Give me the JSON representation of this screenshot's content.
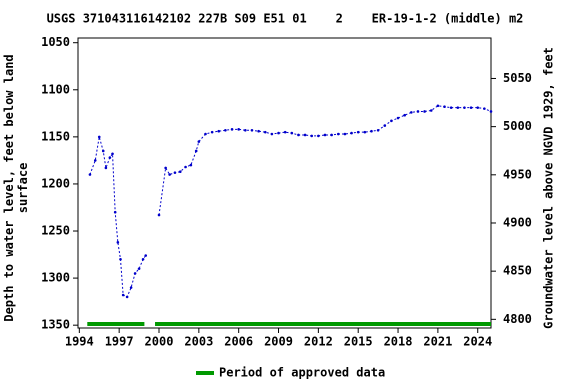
{
  "chart_data": {
    "type": "line",
    "title": "USGS 371043116142102 227B S09 E51 01    2    ER-19-1-2 (middle) m2",
    "y_label": "Depth to water level, feet below land\nsurface",
    "y2_label": "Groundwater level above NGVD 1929, feet",
    "x": [
      1994.8,
      1995.2,
      1995.5,
      1995.8,
      1996.0,
      1996.3,
      1996.5,
      1996.7,
      1996.9,
      1997.1,
      1997.3,
      1997.6,
      1997.9,
      1998.2,
      1998.5,
      1998.8,
      1999.0,
      1999.4,
      2000.0,
      2000.5,
      2000.8,
      2001.2,
      2001.6,
      2002.0,
      2002.4,
      2002.8,
      2003.0,
      2003.5,
      2004.0,
      2004.5,
      2005.0,
      2005.5,
      2006.0,
      2006.5,
      2007.0,
      2007.5,
      2008.0,
      2008.5,
      2009.0,
      2009.5,
      2010.0,
      2010.5,
      2011.0,
      2011.5,
      2012.0,
      2012.5,
      2013.0,
      2013.5,
      2014.0,
      2014.5,
      2015.0,
      2015.5,
      2016.0,
      2016.5,
      2017.0,
      2017.5,
      2018.0,
      2018.5,
      2019.0,
      2019.5,
      2020.0,
      2020.5,
      2021.0,
      2021.5,
      2022.0,
      2022.5,
      2023.0,
      2023.5,
      2024.0,
      2024.5,
      2025.0
    ],
    "series": [
      {
        "name": "Depth to water level",
        "color": "#0000cc",
        "values": [
          1190,
          1175,
          1150,
          1165,
          1183,
          1172,
          1168,
          1230,
          1262,
          1280,
          1318,
          1320,
          1310,
          1295,
          1290,
          1280,
          1276,
          null,
          1233,
          1183,
          1190,
          1188,
          1187,
          1182,
          1180,
          1165,
          1155,
          1147,
          1145,
          1144,
          1143,
          1142,
          1142,
          1143,
          1143,
          1144,
          1145,
          1147,
          1146,
          1145,
          1146,
          1148,
          1148,
          1149,
          1149,
          1148,
          1148,
          1147,
          1147,
          1146,
          1145,
          1145,
          1144,
          1143,
          1138,
          1133,
          1130,
          1127,
          1124,
          1123,
          1123,
          1122,
          1117,
          1118,
          1119,
          1119,
          1119,
          1119,
          1119,
          1120,
          1123
        ]
      }
    ],
    "xlim": [
      1993.9,
      2025.0
    ],
    "xticks": [
      1994,
      1997,
      2000,
      2003,
      2006,
      2009,
      2012,
      2015,
      2018,
      2021,
      2024
    ],
    "ylim": [
      1353,
      1045
    ],
    "yticks": [
      1050,
      1100,
      1150,
      1200,
      1250,
      1300,
      1350
    ],
    "y2lim": [
      4791,
      5092
    ],
    "y2ticks": [
      4800,
      4850,
      4900,
      4950,
      5000,
      5050
    ],
    "approved": {
      "name": "Period of approved data",
      "color": "#009900",
      "periods": [
        [
          1994.6,
          1998.9
        ],
        [
          1999.7,
          2025.0
        ]
      ]
    }
  }
}
